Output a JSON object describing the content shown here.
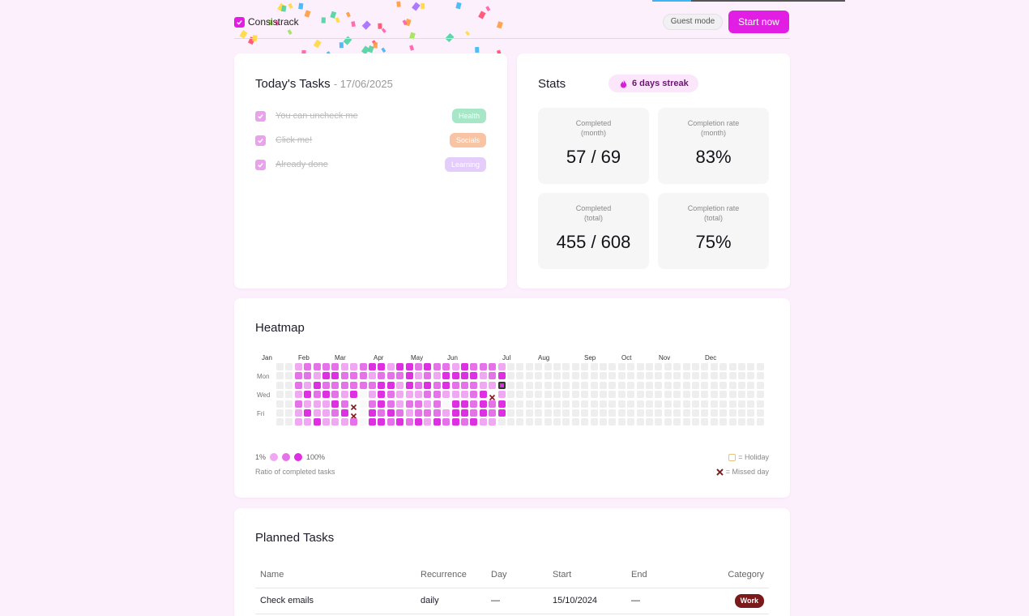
{
  "app": {
    "name": "Consistrack",
    "brand_color": "#e21ee5"
  },
  "header": {
    "guest_label": "Guest mode",
    "start_label": "Start now"
  },
  "today": {
    "title": "Today's Tasks",
    "date": "- 17/06/2025",
    "tasks": [
      {
        "label": "You can uncheck me",
        "tag": "Health",
        "tag_color": "#a8e6c8",
        "checked": true
      },
      {
        "label": "Click me!",
        "tag": "Socials",
        "tag_color": "#f8c4a4",
        "checked": true
      },
      {
        "label": "Already done",
        "tag": "Learning",
        "tag_color": "#e4cdfa",
        "checked": true
      }
    ]
  },
  "stats": {
    "title": "Stats",
    "streak": "6 days streak",
    "boxes": [
      {
        "label1": "Completed",
        "label2": "(month)",
        "value": "57 / 69"
      },
      {
        "label1": "Completion rate",
        "label2": "(month)",
        "value": "83%"
      },
      {
        "label1": "Completed",
        "label2": "(total)",
        "value": "455 / 608"
      },
      {
        "label1": "Completion rate",
        "label2": "(total)",
        "value": "75%"
      }
    ]
  },
  "heatmap": {
    "title": "Heatmap",
    "months": [
      "Jan",
      "Feb",
      "Mar",
      "Apr",
      "May",
      "Jun",
      "Jul",
      "Aug",
      "Sep",
      "Oct",
      "Nov",
      "Dec"
    ],
    "days": [
      "Mon",
      "Wed",
      "Fri"
    ],
    "legend_min": "1%",
    "legend_max": "100%",
    "legend_caption": "Ratio of completed tasks",
    "holiday_label": "= Holiday",
    "missed_label": "= Missed day",
    "level_colors": [
      "#eeeeee",
      "#f0a8f2",
      "#e672e9",
      "#df2fe2"
    ],
    "missed_color": "#8b1a1a"
  },
  "planned": {
    "title": "Planned Tasks",
    "columns": [
      "Name",
      "Recurrence",
      "Day",
      "Start",
      "End",
      "Category"
    ],
    "rows": [
      {
        "name": "Check emails",
        "recurrence": "daily",
        "day": "—",
        "start": "15/10/2024",
        "end": "—",
        "category": "Work"
      }
    ]
  }
}
